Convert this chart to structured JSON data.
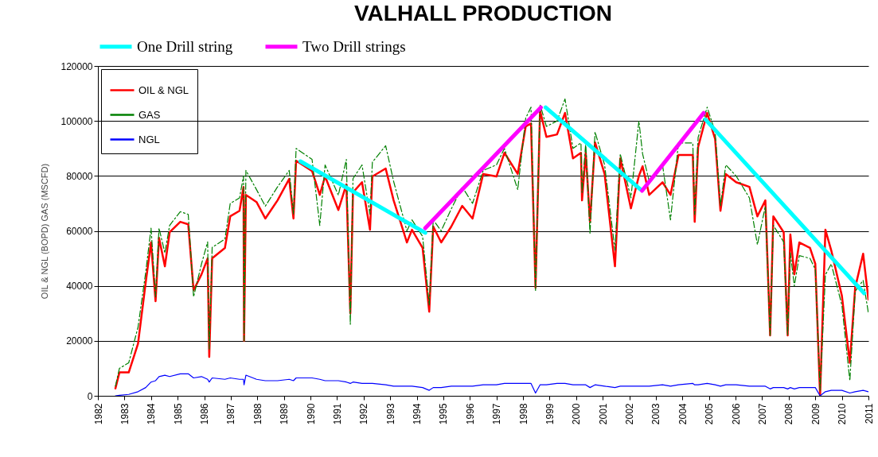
{
  "chart_data": {
    "type": "line",
    "title": "VALHALL PRODUCTION",
    "ylabel": "OIL & NGL (BOPD) GAS (MSCFD)",
    "x": [
      1982.66,
      1982.81,
      1983.16,
      1983.51,
      1983.8,
      1984.0,
      1984.17,
      1984.3,
      1984.52,
      1984.7,
      1985.1,
      1985.4,
      1985.6,
      1985.9,
      1986.13,
      1986.19,
      1986.3,
      1986.78,
      1986.98,
      1987.33,
      1987.48,
      1987.5,
      1987.57,
      1987.97,
      1988.3,
      1988.76,
      1989.2,
      1989.36,
      1989.46,
      1990.06,
      1990.35,
      1990.55,
      1991.05,
      1991.35,
      1991.5,
      1991.6,
      1991.94,
      1992.24,
      1992.33,
      1992.83,
      1993.13,
      1993.63,
      1993.82,
      1994.22,
      1994.47,
      1994.62,
      1994.92,
      1995.3,
      1995.71,
      1996.1,
      1996.5,
      1997.0,
      1997.3,
      1997.8,
      1998.1,
      1998.3,
      1998.47,
      1998.64,
      1998.88,
      1999.28,
      1999.58,
      1999.88,
      2000.18,
      2000.22,
      2000.36,
      2000.52,
      2000.71,
      2001.07,
      2001.46,
      2001.66,
      2002.06,
      2002.36,
      2002.5,
      2002.75,
      2003.25,
      2003.55,
      2003.85,
      2004.39,
      2004.46,
      2004.59,
      2004.93,
      2005.23,
      2005.43,
      2005.63,
      2006.02,
      2006.52,
      2006.82,
      2007.12,
      2007.3,
      2007.42,
      2007.81,
      2007.96,
      2008.06,
      2008.21,
      2008.4,
      2008.8,
      2009.0,
      2009.18,
      2009.38,
      2009.6,
      2010.0,
      2010.3,
      2010.5,
      2010.8,
      2011.0
    ],
    "series": [
      {
        "name": "OIL & NGL",
        "color": "#ff0000",
        "line_style": "solid",
        "values": [
          2700,
          8500,
          8500,
          19000,
          41300,
          55800,
          34400,
          57500,
          47100,
          59500,
          63300,
          62400,
          38400,
          44200,
          50000,
          14200,
          50000,
          53800,
          65300,
          67300,
          76000,
          20000,
          73100,
          70500,
          64500,
          71100,
          78900,
          64500,
          85500,
          81800,
          73100,
          79800,
          67600,
          76900,
          30000,
          74000,
          77700,
          60400,
          79800,
          82700,
          71100,
          55800,
          60400,
          53800,
          30600,
          61600,
          55800,
          61600,
          69100,
          64500,
          80700,
          79800,
          88400,
          80700,
          98000,
          99100,
          39300,
          103800,
          94200,
          95100,
          102900,
          86400,
          88400,
          71100,
          88400,
          63300,
          92200,
          80700,
          47100,
          86400,
          68200,
          80000,
          83500,
          73100,
          77700,
          73100,
          87600,
          87600,
          63300,
          90500,
          102900,
          93400,
          67300,
          80700,
          77700,
          76000,
          65300,
          71100,
          22000,
          65300,
          59500,
          22000,
          58700,
          44200,
          55800,
          53800,
          48000,
          0,
          60400,
          52900,
          36400,
          12000,
          39300,
          51700,
          35000
        ]
      },
      {
        "name": "GAS",
        "color": "#008000",
        "line_style": "dashed",
        "values": [
          3500,
          10000,
          12000,
          25000,
          45000,
          61000,
          36000,
          61000,
          52000,
          62000,
          67000,
          66000,
          36000,
          48000,
          56000,
          17000,
          54000,
          57000,
          70000,
          72000,
          80000,
          20000,
          82000,
          75000,
          69000,
          76000,
          82000,
          66000,
          90000,
          86000,
          62000,
          84000,
          73000,
          86000,
          26000,
          79000,
          84000,
          66000,
          85000,
          91000,
          78000,
          60000,
          64000,
          58000,
          33000,
          64000,
          60000,
          68000,
          76000,
          70000,
          82000,
          84000,
          90000,
          75000,
          101000,
          105000,
          38000,
          106000,
          98000,
          100000,
          108000,
          90000,
          92000,
          74000,
          92000,
          59000,
          96000,
          84000,
          53000,
          88000,
          72000,
          100000,
          88000,
          78000,
          84000,
          64000,
          92000,
          92000,
          66000,
          94000,
          105000,
          96000,
          69000,
          84000,
          80000,
          72000,
          55000,
          69000,
          22000,
          62000,
          56000,
          22000,
          52000,
          40000,
          51000,
          50000,
          46000,
          2000,
          44000,
          48000,
          33000,
          5500,
          38000,
          42000,
          30000
        ]
      },
      {
        "name": "NGL",
        "color": "#0000ff",
        "line_style": "solid",
        "values": [
          0,
          200,
          500,
          1500,
          3000,
          5000,
          5500,
          7000,
          7500,
          7000,
          8000,
          8000,
          6500,
          7000,
          6000,
          5000,
          6500,
          6000,
          6500,
          6000,
          6000,
          4000,
          7500,
          6000,
          5500,
          5500,
          6000,
          5500,
          6500,
          6500,
          6000,
          5500,
          5500,
          5000,
          4500,
          5000,
          4500,
          4500,
          4500,
          4000,
          3500,
          3500,
          3500,
          3000,
          2000,
          3000,
          3000,
          3500,
          3500,
          3500,
          4000,
          4000,
          4500,
          4500,
          4500,
          4500,
          1000,
          4000,
          4000,
          4500,
          4500,
          4000,
          4000,
          4000,
          4000,
          3000,
          4000,
          3500,
          3000,
          3500,
          3500,
          3500,
          3500,
          3500,
          4000,
          3500,
          4000,
          4500,
          4000,
          4000,
          4500,
          4000,
          3500,
          4000,
          4000,
          3500,
          3500,
          3500,
          2500,
          3000,
          3000,
          2500,
          3000,
          2500,
          3000,
          3000,
          3000,
          0,
          1500,
          2000,
          2000,
          1000,
          1500,
          2000,
          1500
        ]
      },
      {
        "name": "One Drill string",
        "type": "line",
        "color": "#00ffff",
        "line_style": "solid",
        "x": [
          1989.62,
          1994.32,
          1996.5,
          1998.85,
          2002.42,
          2003.5,
          2004.86,
          2010.84
        ],
        "values": [
          85300,
          59300,
          null,
          104900,
          75100,
          null,
          100600,
          37300
        ]
      },
      {
        "name": "Two Drill strings",
        "type": "line",
        "color": "#ff00ff",
        "line_style": "solid",
        "x": [
          1994.32,
          1998.67,
          2000.5,
          2002.48,
          2004.8
        ],
        "values": [
          61000,
          104900,
          null,
          74600,
          102900
        ]
      }
    ],
    "xlim": [
      1982,
      2011
    ],
    "xticks": [
      1982,
      1983,
      1984,
      1985,
      1986,
      1987,
      1988,
      1989,
      1990,
      1991,
      1992,
      1993,
      1994,
      1995,
      1996,
      1997,
      1998,
      1999,
      2000,
      2001,
      2002,
      2003,
      2004,
      2005,
      2006,
      2007,
      2008,
      2009,
      2010,
      2011
    ],
    "ylim": [
      0,
      120000
    ],
    "yticks": [
      0,
      20000,
      40000,
      60000,
      80000,
      100000,
      120000
    ],
    "grid": "y",
    "legend": "top left"
  }
}
